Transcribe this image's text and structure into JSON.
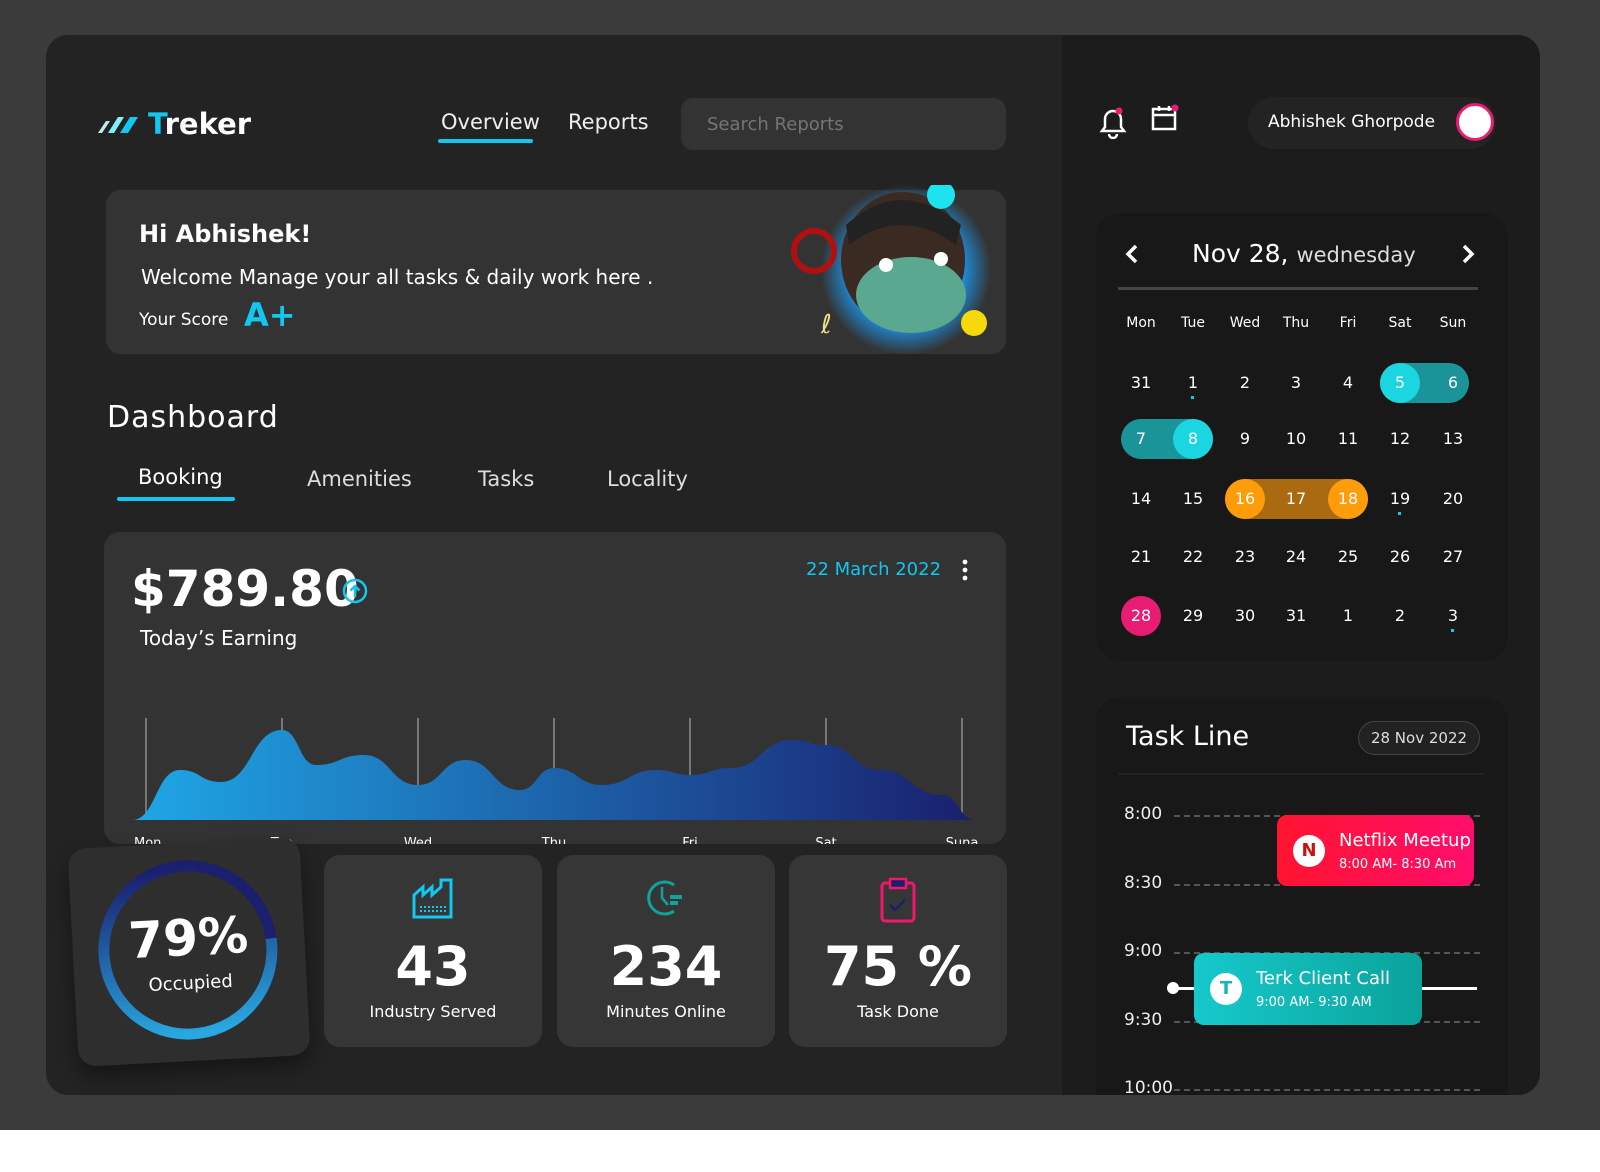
{
  "app": {
    "name_first": "T",
    "name_rest": "reker"
  },
  "nav": {
    "items": [
      {
        "label": "Overview",
        "active": true
      },
      {
        "label": "Reports",
        "active": false
      }
    ],
    "search_placeholder": "Search Reports"
  },
  "welcome": {
    "greeting": "Hi Abhishek!",
    "message": "Welcome Manage your all tasks & daily work here .",
    "score_label": "Your Score",
    "score": "A+"
  },
  "dashboard": {
    "title": "Dashboard",
    "tabs": [
      "Booking",
      "Amenities",
      "Tasks",
      "Locality"
    ],
    "active_tab": "Booking"
  },
  "earning": {
    "amount": "$789.80",
    "label": "Today’s Earning",
    "date": "22 March 2022"
  },
  "chart_data": {
    "type": "area",
    "categories": [
      "Mon",
      "Tue",
      "Wed",
      "Thu",
      "Fri",
      "Sat",
      "Suna"
    ],
    "x": [
      0,
      0.25,
      0.55,
      1,
      1.25,
      1.6,
      2,
      2.35,
      2.75,
      3,
      3.35,
      3.75,
      4,
      4.3,
      4.75,
      5,
      5.4,
      5.85,
      6
    ],
    "values": [
      0,
      50,
      38,
      90,
      55,
      65,
      35,
      60,
      30,
      52,
      35,
      50,
      45,
      52,
      80,
      75,
      50,
      25,
      0
    ],
    "grid": "vertical",
    "colors": [
      "#1fa7e6",
      "#1a1f6e"
    ]
  },
  "stats": {
    "occupied": {
      "value": "79%",
      "label": "Occupied",
      "percent": 79
    },
    "items": [
      {
        "value": "43",
        "label": "Industry Served",
        "icon": "factory-icon",
        "color": "#12c7f0"
      },
      {
        "value": "234",
        "label": "Minutes Online",
        "icon": "clock-icon",
        "color": "#0fa39a"
      },
      {
        "value": "75 %",
        "label": "Task Done",
        "icon": "clipboard-icon",
        "color": "#f0186a"
      }
    ]
  },
  "user": {
    "name": "Abhishek Ghorpode"
  },
  "calendar": {
    "title_date": "Nov 28,",
    "title_day": "wednesday",
    "weekdays": [
      "Mon",
      "Tue",
      "Wed",
      "Thu",
      "Fri",
      "Sat",
      "Sun"
    ],
    "weeks": [
      [
        "31",
        "1",
        "2",
        "3",
        "4",
        "5",
        "6"
      ],
      [
        "7",
        "8",
        "9",
        "10",
        "11",
        "12",
        "13"
      ],
      [
        "14",
        "15",
        "16",
        "17",
        "18",
        "19",
        "20"
      ],
      [
        "21",
        "22",
        "23",
        "24",
        "25",
        "26",
        "27"
      ],
      [
        "28",
        "29",
        "30",
        "31",
        "1",
        "2",
        "3"
      ]
    ],
    "colors": {
      "teal": "#1bd6e0",
      "teal_dark": "#1b9499",
      "orange": "#ff9c0a",
      "orange_dark": "#a96a10",
      "today": "#e81c72"
    }
  },
  "taskline": {
    "title": "Task Line",
    "date": "28 Nov 2022",
    "times": [
      "8:00",
      "8:30",
      "9:00",
      "9:30",
      "10:00"
    ],
    "events": [
      {
        "initial": "N",
        "title": "Netflix Meetup",
        "time": "8:00 AM- 8:30 Am"
      },
      {
        "initial": "T",
        "title": "Terk Client Call",
        "time": "9:00 AM- 9:30 AM"
      }
    ]
  }
}
